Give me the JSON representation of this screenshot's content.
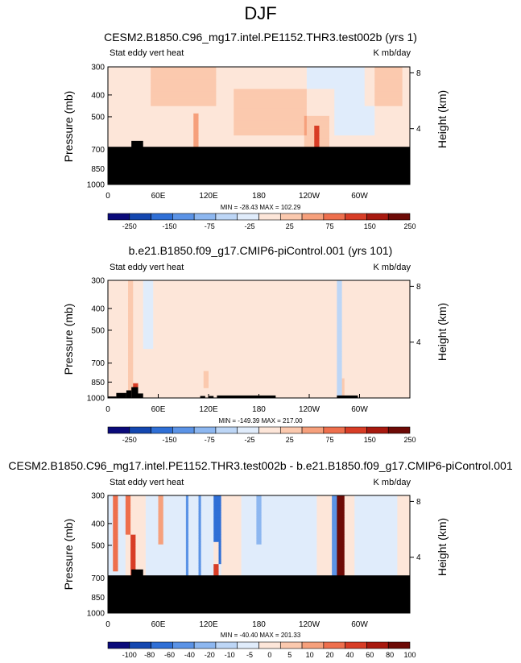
{
  "figure_title": "DJF",
  "colors": {
    "black": "#000000",
    "white": "#ffffff",
    "palette": [
      "#0a0a7a",
      "#1447b0",
      "#2f6fd6",
      "#5b93e6",
      "#8db7f0",
      "#bdd6f6",
      "#e0ecfb",
      "#fde6d9",
      "#fbc9ae",
      "#f6a07c",
      "#ee6f4d",
      "#d83d26",
      "#a8190f",
      "#6d0a06"
    ]
  },
  "chart_data": [
    {
      "type": "heatmap",
      "title": "CESM2.B1850.C96_mg17.intel.PE1152.THR3.test002b (yrs 1)",
      "left_label": "Stat eddy vert heat",
      "right_label": "K mb/day",
      "ylabel": "Pressure (mb)",
      "ylabel_right": "Height (km)",
      "yticks": [
        "300",
        "400",
        "500",
        "700",
        "850",
        "1000"
      ],
      "yticks_right": [
        "8",
        "4"
      ],
      "xticks": [
        "0",
        "60E",
        "120E",
        "180",
        "120W",
        "60W"
      ],
      "stats": "MIN = -28.43  MAX = 102.29",
      "colorbar_labels": [
        "-250",
        "-150",
        "-75",
        "-25",
        "25",
        "75",
        "150",
        "250"
      ],
      "colorbar_levels": [
        -250,
        -200,
        -150,
        -100,
        -75,
        -50,
        -25,
        0,
        25,
        50,
        75,
        100,
        150,
        200,
        250
      ],
      "terrain_pressure_top": 680,
      "terrain_bump": {
        "lon": [
          28,
          42
        ],
        "pressure_top": 640
      },
      "features": [
        {
          "lon": 0,
          "half_width": 180,
          "p_top": 300,
          "p_bot": 680,
          "value": 10
        },
        {
          "lon": 20,
          "half_width": 30,
          "p_top": 300,
          "p_bot": 680,
          "value": -10
        },
        {
          "lon": 90,
          "half_width": 40,
          "p_top": 300,
          "p_bot": 450,
          "value": 20
        },
        {
          "lon": 210,
          "half_width": 60,
          "p_top": 380,
          "p_bot": 600,
          "value": 15
        },
        {
          "lon": 278,
          "half_width": 40,
          "p_top": 300,
          "p_bot": 600,
          "value": -12
        },
        {
          "lon": 330,
          "half_width": 25,
          "p_top": 300,
          "p_bot": 450,
          "value": 20
        },
        {
          "lon": 104,
          "half_width": 3,
          "p_top": 480,
          "p_bot": 680,
          "value": 40
        },
        {
          "lon": 200,
          "half_width": 20,
          "p_top": 600,
          "p_bot": 680,
          "value": -10
        },
        {
          "lon": 250,
          "half_width": 15,
          "p_top": 500,
          "p_bot": 680,
          "value": 30
        },
        {
          "lon": 30,
          "half_width": 5,
          "p_top": 500,
          "p_bot": 680,
          "value": 15
        },
        {
          "lon": 248,
          "half_width": 3,
          "p_top": 550,
          "p_bot": 680,
          "value": 80
        }
      ]
    },
    {
      "type": "heatmap",
      "title": "b.e21.B1850.f09_g17.CMIP6-piControl.001 (yrs 101)",
      "left_label": "Stat eddy vert heat",
      "right_label": "K mb/day",
      "ylabel": "Pressure (mb)",
      "ylabel_right": "Height (km)",
      "yticks": [
        "300",
        "400",
        "500",
        "700",
        "850",
        "1000"
      ],
      "yticks_right": [
        "8",
        "4"
      ],
      "xticks": [
        "0",
        "60E",
        "120E",
        "180",
        "120W",
        "60W"
      ],
      "stats": "MIN = -149.39  MAX = 217.00",
      "colorbar_labels": [
        "-250",
        "-150",
        "-75",
        "-25",
        "25",
        "75",
        "150",
        "250"
      ],
      "colorbar_levels": [
        -250,
        -200,
        -150,
        -100,
        -75,
        -50,
        -25,
        0,
        25,
        50,
        75,
        100,
        150,
        200,
        250
      ],
      "terrain_pressure_top": null,
      "terrain_blocks": [
        {
          "lon": [
            0,
            10
          ],
          "pressure_top": 985
        },
        {
          "lon": [
            10,
            22
          ],
          "pressure_top": 950
        },
        {
          "lon": [
            22,
            28
          ],
          "pressure_top": 925
        },
        {
          "lon": [
            28,
            36
          ],
          "pressure_top": 895
        },
        {
          "lon": [
            36,
            42
          ],
          "pressure_top": 955
        },
        {
          "lon": [
            110,
            116
          ],
          "pressure_top": 980
        },
        {
          "lon": [
            120,
            126
          ],
          "pressure_top": 980
        },
        {
          "lon": [
            130,
            200
          ],
          "pressure_top": 975
        },
        {
          "lon": [
            273,
            298
          ],
          "pressure_top": 975
        }
      ],
      "features": [
        {
          "lon": 0,
          "half_width": 180,
          "p_top": 300,
          "p_bot": 1000,
          "value": 10
        },
        {
          "lon": 15,
          "half_width": 15,
          "p_top": 300,
          "p_bot": 1000,
          "value": -10
        },
        {
          "lon": 48,
          "half_width": 6,
          "p_top": 300,
          "p_bot": 600,
          "value": -12
        },
        {
          "lon": 70,
          "half_width": 10,
          "p_top": 300,
          "p_bot": 1000,
          "value": -10
        },
        {
          "lon": 95,
          "half_width": 5,
          "p_top": 300,
          "p_bot": 1000,
          "value": -10
        },
        {
          "lon": 200,
          "half_width": 70,
          "p_top": 830,
          "p_bot": 1000,
          "value": -10
        },
        {
          "lon": 230,
          "half_width": 30,
          "p_top": 300,
          "p_bot": 520,
          "value": 12
        },
        {
          "lon": 320,
          "half_width": 40,
          "p_top": 300,
          "p_bot": 1000,
          "value": -10
        },
        {
          "lon": 27,
          "half_width": 4,
          "p_top": 300,
          "p_bot": 1000,
          "value": 40
        },
        {
          "lon": 34,
          "half_width": 3,
          "p_top": 860,
          "p_bot": 1000,
          "value": 120
        },
        {
          "lon": 277,
          "half_width": 3,
          "p_top": 300,
          "p_bot": 1000,
          "value": -60
        },
        {
          "lon": 281,
          "half_width": 2,
          "p_top": 820,
          "p_bot": 1000,
          "value": 30
        },
        {
          "lon": 118,
          "half_width": 3,
          "p_top": 750,
          "p_bot": 900,
          "value": 20
        }
      ]
    },
    {
      "type": "heatmap",
      "title": "CESM2.B1850.C96_mg17.intel.PE1152.THR3.test002b - b.e21.B1850.f09_g17.CMIP6-piControl.001",
      "left_label": "Stat eddy vert heat",
      "right_label": "K mb/day",
      "ylabel": "Pressure (mb)",
      "ylabel_right": "Height (km)",
      "yticks": [
        "300",
        "400",
        "500",
        "700",
        "850",
        "1000"
      ],
      "yticks_right": [
        "8",
        "4"
      ],
      "xticks": [
        "0",
        "60E",
        "120E",
        "180",
        "120W",
        "60W"
      ],
      "stats": "MIN = -40.40  MAX = 201.33",
      "colorbar_labels": [
        "-100",
        "-80",
        "-60",
        "-40",
        "-20",
        "-10",
        "-5",
        "0",
        "5",
        "10",
        "20",
        "40",
        "60",
        "80",
        "100"
      ],
      "colorbar_levels": [
        -100,
        -80,
        -60,
        -40,
        -20,
        -10,
        -5,
        0,
        5,
        10,
        20,
        40,
        60,
        80,
        100
      ],
      "terrain_pressure_top": 680,
      "terrain_bump": {
        "lon": [
          28,
          42
        ],
        "pressure_top": 640
      },
      "features": [
        {
          "lon": 0,
          "half_width": 180,
          "p_top": 300,
          "p_bot": 680,
          "value": 3
        },
        {
          "lon": 10,
          "half_width": 10,
          "p_top": 300,
          "p_bot": 680,
          "value": -6
        },
        {
          "lon": 90,
          "half_width": 45,
          "p_top": 300,
          "p_bot": 680,
          "value": -4
        },
        {
          "lon": 205,
          "half_width": 45,
          "p_top": 300,
          "p_bot": 680,
          "value": -4
        },
        {
          "lon": 320,
          "half_width": 25,
          "p_top": 300,
          "p_bot": 680,
          "value": -4
        },
        {
          "lon": 8,
          "half_width": 3,
          "p_top": 300,
          "p_bot": 650,
          "value": 25
        },
        {
          "lon": 25,
          "half_width": 3,
          "p_top": 300,
          "p_bot": 450,
          "value": 25
        },
        {
          "lon": 31,
          "half_width": 3,
          "p_top": 450,
          "p_bot": 680,
          "value": 40
        },
        {
          "lon": 64,
          "half_width": 3,
          "p_top": 300,
          "p_bot": 500,
          "value": 15
        },
        {
          "lon": 95,
          "half_width": 2,
          "p_top": 300,
          "p_bot": 680,
          "value": -30
        },
        {
          "lon": 110,
          "half_width": 2,
          "p_top": 300,
          "p_bot": 680,
          "value": -20
        },
        {
          "lon": 130,
          "half_width": 4,
          "p_top": 300,
          "p_bot": 600,
          "value": -40
        },
        {
          "lon": 128,
          "half_width": 3,
          "p_top": 480,
          "p_bot": 680,
          "value": 45
        },
        {
          "lon": 180,
          "half_width": 3,
          "p_top": 300,
          "p_bot": 500,
          "value": -15
        },
        {
          "lon": 275,
          "half_width": 3,
          "p_top": 300,
          "p_bot": 680,
          "value": 80
        },
        {
          "lon": 281,
          "half_width": 2,
          "p_top": 300,
          "p_bot": 680,
          "value": 100
        },
        {
          "lon": 270,
          "half_width": 2,
          "p_top": 300,
          "p_bot": 680,
          "value": -40
        }
      ]
    }
  ]
}
